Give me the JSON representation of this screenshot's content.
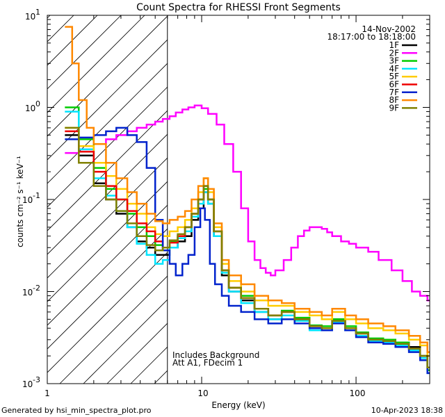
{
  "chart_data": {
    "type": "line",
    "title": "Count Spectra for RHESSI Front Segments",
    "xlabel": "Energy (keV)",
    "ylabel": "counts cm⁻² s⁻¹ keV⁻¹",
    "xscale": "log",
    "yscale": "log",
    "xlim": [
      1,
      300
    ],
    "ylim": [
      0.001,
      10
    ],
    "x_tick_labels": [
      "1",
      "10",
      "100"
    ],
    "y_tick_labels": [
      {
        "base": "10",
        "exp": "1"
      },
      {
        "base": "10",
        "exp": "0"
      },
      {
        "base": "10",
        "exp": "-1"
      },
      {
        "base": "10",
        "exp": "-2"
      },
      {
        "base": "10",
        "exp": "-3"
      }
    ],
    "date": "14-Nov-2002",
    "time_range": "18:17:00 to 18:18:00",
    "threshold_keV": 6.0,
    "annotations": [
      "Includes Background",
      "Att A1, FDecim 1"
    ],
    "footer_left": "Generated by hsi_min_spectra_plot.pro",
    "footer_right": "10-Apr-2023 18:38",
    "series": [
      {
        "name": "1F",
        "color": "#000000",
        "x": [
          1.3,
          1.6,
          2.0,
          2.4,
          2.8,
          3.3,
          3.8,
          4.4,
          5.0,
          5.6,
          6.2,
          7.0,
          7.8,
          8.6,
          9.5,
          10.3,
          11.0,
          12.0,
          13.5,
          15,
          18,
          22,
          27,
          33,
          40,
          50,
          60,
          70,
          85,
          100,
          120,
          150,
          180,
          220,
          260,
          290
        ],
        "y": [
          0.5,
          0.3,
          0.15,
          0.1,
          0.07,
          0.05,
          0.035,
          0.03,
          0.025,
          0.025,
          0.03,
          0.035,
          0.04,
          0.06,
          0.08,
          0.12,
          0.09,
          0.04,
          0.015,
          0.01,
          0.008,
          0.006,
          0.005,
          0.006,
          0.005,
          0.004,
          0.004,
          0.005,
          0.004,
          0.0035,
          0.003,
          0.003,
          0.0028,
          0.0025,
          0.002,
          0.0015
        ]
      },
      {
        "name": "2F",
        "color": "#ff00ff",
        "x": [
          1.3,
          1.6,
          2.0,
          2.4,
          2.8,
          3.3,
          3.8,
          4.4,
          5.0,
          5.6,
          6.2,
          6.8,
          7.5,
          8.2,
          9.0,
          10,
          11,
          12.5,
          14,
          16,
          18,
          20,
          22,
          24,
          26,
          28,
          30,
          34,
          38,
          42,
          46,
          50,
          55,
          60,
          65,
          70,
          80,
          90,
          100,
          120,
          140,
          170,
          200,
          230,
          260,
          290
        ],
        "y": [
          0.32,
          0.35,
          0.4,
          0.45,
          0.5,
          0.55,
          0.6,
          0.65,
          0.7,
          0.75,
          0.8,
          0.88,
          0.95,
          1.0,
          1.05,
          0.98,
          0.85,
          0.65,
          0.4,
          0.2,
          0.08,
          0.035,
          0.022,
          0.018,
          0.016,
          0.015,
          0.017,
          0.022,
          0.03,
          0.04,
          0.046,
          0.05,
          0.05,
          0.048,
          0.044,
          0.04,
          0.035,
          0.033,
          0.03,
          0.027,
          0.022,
          0.017,
          0.013,
          0.01,
          0.009,
          0.008
        ]
      },
      {
        "name": "3F",
        "color": "#00cc00",
        "x": [
          1.3,
          1.6,
          2.0,
          2.4,
          2.8,
          3.3,
          3.8,
          4.4,
          5.0,
          5.6,
          6.2,
          7.0,
          7.8,
          8.6,
          9.5,
          10.3,
          11.0,
          12.0,
          13.5,
          15,
          18,
          22,
          27,
          33,
          40,
          50,
          60,
          70,
          85,
          100,
          120,
          150,
          180,
          220,
          260,
          290
        ],
        "y": [
          1.0,
          0.45,
          0.22,
          0.13,
          0.1,
          0.07,
          0.05,
          0.04,
          0.032,
          0.03,
          0.035,
          0.04,
          0.05,
          0.07,
          0.1,
          0.13,
          0.1,
          0.045,
          0.017,
          0.011,
          0.009,
          0.0065,
          0.0055,
          0.0062,
          0.0052,
          0.0043,
          0.0042,
          0.005,
          0.0042,
          0.0036,
          0.0031,
          0.003,
          0.0028,
          0.0024,
          0.002,
          0.0014
        ]
      },
      {
        "name": "4F",
        "color": "#00e5ff",
        "x": [
          1.3,
          1.6,
          2.0,
          2.4,
          2.8,
          3.3,
          3.8,
          4.4,
          5.0,
          5.6,
          6.2,
          7.0,
          7.8,
          8.6,
          9.5,
          10.3,
          11.0,
          12.0,
          13.5,
          15,
          18,
          22,
          27,
          33,
          40,
          50,
          60,
          70,
          85,
          100,
          120,
          150,
          180,
          220,
          260,
          290
        ],
        "y": [
          0.9,
          0.35,
          0.17,
          0.11,
          0.075,
          0.05,
          0.033,
          0.025,
          0.02,
          0.022,
          0.03,
          0.038,
          0.045,
          0.065,
          0.09,
          0.12,
          0.09,
          0.04,
          0.016,
          0.01,
          0.0075,
          0.006,
          0.005,
          0.0055,
          0.0048,
          0.0038,
          0.0038,
          0.0046,
          0.0038,
          0.0033,
          0.0029,
          0.0028,
          0.0026,
          0.0023,
          0.0019,
          0.0013
        ]
      },
      {
        "name": "5F",
        "color": "#ffcc00",
        "x": [
          1.3,
          1.6,
          2.0,
          2.4,
          2.8,
          3.3,
          3.8,
          4.4,
          5.0,
          5.6,
          6.2,
          7.0,
          7.8,
          8.6,
          9.5,
          10.3,
          11.0,
          12.0,
          13.5,
          15,
          18,
          22,
          27,
          33,
          40,
          50,
          60,
          70,
          85,
          100,
          120,
          150,
          180,
          220,
          260,
          290
        ],
        "y": [
          0.6,
          0.38,
          0.25,
          0.18,
          0.13,
          0.09,
          0.07,
          0.05,
          0.042,
          0.04,
          0.045,
          0.05,
          0.06,
          0.08,
          0.12,
          0.17,
          0.12,
          0.05,
          0.02,
          0.013,
          0.01,
          0.008,
          0.007,
          0.007,
          0.006,
          0.0055,
          0.005,
          0.006,
          0.005,
          0.0045,
          0.004,
          0.0038,
          0.0035,
          0.003,
          0.0026,
          0.002
        ]
      },
      {
        "name": "6F",
        "color": "#ee0000",
        "x": [
          1.3,
          1.6,
          2.0,
          2.4,
          2.8,
          3.3,
          3.8,
          4.4,
          5.0,
          5.6,
          6.2,
          7.0,
          7.8,
          8.6,
          9.5,
          10.3,
          11.0,
          12.0,
          13.5,
          15,
          18,
          22,
          27,
          33,
          40,
          50,
          60,
          70,
          85,
          100,
          120,
          150,
          180,
          220,
          260,
          290
        ],
        "y": [
          0.55,
          0.33,
          0.2,
          0.14,
          0.1,
          0.075,
          0.055,
          0.045,
          0.035,
          0.03,
          0.034,
          0.04,
          0.05,
          0.07,
          0.1,
          0.14,
          0.1,
          0.045,
          0.017,
          0.011,
          0.0085,
          0.0065,
          0.0055,
          0.006,
          0.005,
          0.0042,
          0.004,
          0.0048,
          0.004,
          0.0035,
          0.003,
          0.0029,
          0.0027,
          0.0024,
          0.002,
          0.0015
        ]
      },
      {
        "name": "7F",
        "color": "#0022cc",
        "x": [
          1.3,
          1.6,
          2.0,
          2.4,
          2.8,
          3.3,
          3.8,
          4.4,
          5.0,
          5.6,
          6.2,
          6.8,
          7.5,
          8.2,
          9.0,
          9.8,
          10.5,
          11.3,
          12.2,
          13.5,
          15,
          18,
          22,
          27,
          33,
          40,
          50,
          60,
          70,
          85,
          100,
          120,
          150,
          180,
          220,
          260,
          290
        ],
        "y": [
          0.45,
          0.47,
          0.5,
          0.55,
          0.6,
          0.5,
          0.42,
          0.22,
          0.06,
          0.028,
          0.02,
          0.015,
          0.02,
          0.025,
          0.05,
          0.08,
          0.06,
          0.02,
          0.012,
          0.009,
          0.007,
          0.006,
          0.005,
          0.0045,
          0.005,
          0.0045,
          0.004,
          0.0038,
          0.0045,
          0.0038,
          0.0032,
          0.0028,
          0.0027,
          0.0025,
          0.0022,
          0.0018,
          0.0013
        ]
      },
      {
        "name": "8F",
        "color": "#ff8800",
        "x": [
          1.3,
          1.45,
          1.6,
          1.8,
          2.0,
          2.4,
          2.8,
          3.3,
          3.8,
          4.4,
          5.0,
          5.6,
          6.2,
          7.0,
          7.8,
          8.6,
          9.5,
          10.3,
          11.0,
          12.0,
          13.5,
          15,
          18,
          22,
          27,
          33,
          40,
          50,
          60,
          70,
          85,
          100,
          120,
          150,
          180,
          220,
          260,
          290
        ],
        "y": [
          7.5,
          3.0,
          1.2,
          0.6,
          0.4,
          0.25,
          0.17,
          0.12,
          0.09,
          0.07,
          0.058,
          0.055,
          0.06,
          0.065,
          0.075,
          0.1,
          0.14,
          0.17,
          0.13,
          0.055,
          0.022,
          0.015,
          0.012,
          0.009,
          0.008,
          0.0075,
          0.0065,
          0.006,
          0.0055,
          0.0065,
          0.0055,
          0.005,
          0.0045,
          0.0042,
          0.0038,
          0.0033,
          0.0028,
          0.0022
        ]
      },
      {
        "name": "9F",
        "color": "#808000",
        "x": [
          1.3,
          1.6,
          2.0,
          2.4,
          2.8,
          3.3,
          3.8,
          4.4,
          5.0,
          5.6,
          6.2,
          7.0,
          7.8,
          8.6,
          9.5,
          10.3,
          11.0,
          12.0,
          13.5,
          15,
          18,
          22,
          27,
          33,
          40,
          50,
          60,
          70,
          85,
          100,
          120,
          150,
          180,
          220,
          260,
          290
        ],
        "y": [
          0.6,
          0.25,
          0.14,
          0.1,
          0.075,
          0.055,
          0.04,
          0.032,
          0.028,
          0.03,
          0.036,
          0.042,
          0.05,
          0.07,
          0.1,
          0.14,
          0.1,
          0.045,
          0.017,
          0.011,
          0.0085,
          0.0065,
          0.0055,
          0.006,
          0.005,
          0.0042,
          0.004,
          0.0048,
          0.004,
          0.0035,
          0.003,
          0.0029,
          0.0027,
          0.0024,
          0.002,
          0.0015
        ]
      }
    ]
  }
}
